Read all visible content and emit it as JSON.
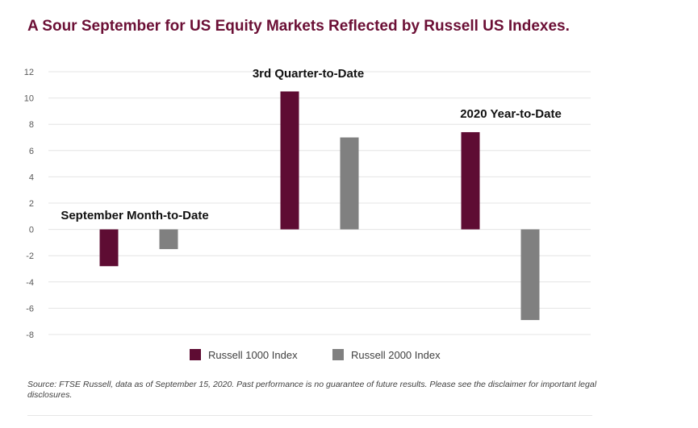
{
  "title": "A Sour September for US Equity Markets Reflected by Russell US Indexes.",
  "source": "Source: FTSE Russell, data as of September 15, 2020. Past performance is no guarantee of future results. Please see the disclaimer for important legal disclosures.",
  "colors": {
    "title": "#6b0f35",
    "russell1000": "#5e0c33",
    "russell2000": "#808080"
  },
  "chart_data": {
    "type": "bar",
    "categories": [
      "September Month-to-Date",
      "3rd Quarter-to-Date",
      "2020 Year-to-Date"
    ],
    "series": [
      {
        "name": "Russell 1000 Index",
        "values": [
          -2.8,
          10.5,
          7.4
        ]
      },
      {
        "name": "Russell 2000 Index",
        "values": [
          -1.5,
          7.0,
          -6.9
        ]
      }
    ],
    "ylim": [
      -8,
      12
    ],
    "yticks": [
      "12",
      "10",
      "8",
      "6",
      "4",
      "2",
      "0",
      "-2",
      "-4",
      "-6",
      "-8"
    ],
    "grid": true,
    "legend_position": "bottom-center"
  }
}
